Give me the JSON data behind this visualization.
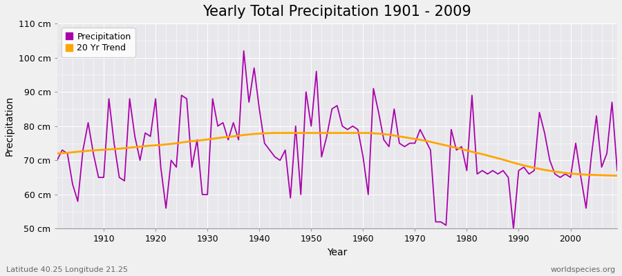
{
  "title": "Yearly Total Precipitation 1901 - 2009",
  "xlabel": "Year",
  "ylabel": "Precipitation",
  "lat_lon_label": "Latitude 40.25 Longitude 21.25",
  "watermark": "worldspecies.org",
  "years": [
    1901,
    1902,
    1903,
    1904,
    1905,
    1906,
    1907,
    1908,
    1909,
    1910,
    1911,
    1912,
    1913,
    1914,
    1915,
    1916,
    1917,
    1918,
    1919,
    1920,
    1921,
    1922,
    1923,
    1924,
    1925,
    1926,
    1927,
    1928,
    1929,
    1930,
    1931,
    1932,
    1933,
    1934,
    1935,
    1936,
    1937,
    1938,
    1939,
    1940,
    1941,
    1942,
    1943,
    1944,
    1945,
    1946,
    1947,
    1948,
    1949,
    1950,
    1951,
    1952,
    1953,
    1954,
    1955,
    1956,
    1957,
    1958,
    1959,
    1960,
    1961,
    1962,
    1963,
    1964,
    1965,
    1966,
    1967,
    1968,
    1969,
    1970,
    1971,
    1972,
    1973,
    1974,
    1975,
    1976,
    1977,
    1978,
    1979,
    1980,
    1981,
    1982,
    1983,
    1984,
    1985,
    1986,
    1987,
    1988,
    1989,
    1990,
    1991,
    1992,
    1993,
    1994,
    1995,
    1996,
    1997,
    1998,
    1999,
    2000,
    2001,
    2002,
    2003,
    2004,
    2005,
    2006,
    2007,
    2008,
    2009
  ],
  "precipitation": [
    70,
    73,
    72,
    63,
    58,
    73,
    81,
    72,
    65,
    65,
    88,
    75,
    65,
    64,
    88,
    77,
    70,
    78,
    77,
    88,
    68,
    56,
    70,
    68,
    89,
    88,
    68,
    76,
    60,
    60,
    88,
    80,
    81,
    76,
    81,
    76,
    102,
    87,
    97,
    85,
    75,
    73,
    71,
    70,
    73,
    59,
    80,
    60,
    90,
    80,
    96,
    71,
    77,
    85,
    86,
    80,
    79,
    80,
    79,
    71,
    60,
    91,
    84,
    76,
    74,
    85,
    75,
    74,
    75,
    75,
    79,
    76,
    73,
    52,
    52,
    51,
    79,
    73,
    74,
    67,
    89,
    66,
    67,
    66,
    67,
    66,
    67,
    65,
    50,
    67,
    68,
    66,
    67,
    84,
    78,
    70,
    66,
    65,
    66,
    65,
    75,
    65,
    56,
    71,
    83,
    68,
    72,
    87,
    67
  ],
  "trend_years": [
    1901,
    1903,
    1905,
    1907,
    1909,
    1911,
    1913,
    1915,
    1917,
    1919,
    1921,
    1923,
    1925,
    1927,
    1929,
    1931,
    1933,
    1935,
    1937,
    1939,
    1941,
    1943,
    1945,
    1947,
    1949,
    1951,
    1953,
    1955,
    1957,
    1959,
    1961,
    1963,
    1965,
    1967,
    1969,
    1971,
    1973,
    1975,
    1977,
    1979,
    1981,
    1983,
    1985,
    1987,
    1989,
    1991,
    1993,
    1995,
    1997,
    1999,
    2001,
    2003,
    2005,
    2007,
    2009
  ],
  "trend_values": [
    72.0,
    72.2,
    72.5,
    72.8,
    73.0,
    73.2,
    73.4,
    73.7,
    74.0,
    74.3,
    74.5,
    74.8,
    75.2,
    75.6,
    75.9,
    76.3,
    76.7,
    77.0,
    77.4,
    77.7,
    77.9,
    78.0,
    78.0,
    78.0,
    78.0,
    78.0,
    78.0,
    78.0,
    78.0,
    78.0,
    78.0,
    77.8,
    77.5,
    77.0,
    76.5,
    76.0,
    75.4,
    74.7,
    74.0,
    73.3,
    72.5,
    71.8,
    71.0,
    70.2,
    69.3,
    68.5,
    67.8,
    67.2,
    66.7,
    66.3,
    66.0,
    65.8,
    65.7,
    65.6,
    65.5
  ],
  "precip_color": "#AA00AA",
  "trend_color": "#FFA500",
  "bg_color": "#F0F0F0",
  "plot_bg_color": "#E8E8EC",
  "grid_color": "#FFFFFF",
  "ylim": [
    50,
    110
  ],
  "xlim": [
    1901,
    2009
  ],
  "yticks": [
    50,
    60,
    70,
    80,
    90,
    100,
    110
  ],
  "ytick_labels": [
    "50 cm",
    "60 cm",
    "70 cm",
    "80 cm",
    "90 cm",
    "100 cm",
    "110 cm"
  ],
  "xticks": [
    1910,
    1920,
    1930,
    1940,
    1950,
    1960,
    1970,
    1980,
    1990,
    2000
  ],
  "title_fontsize": 15,
  "label_fontsize": 10,
  "tick_fontsize": 9,
  "legend_fontsize": 9
}
